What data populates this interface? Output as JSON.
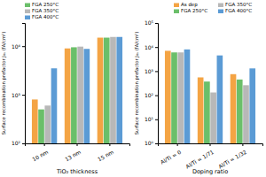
{
  "chart_data": [
    {
      "type": "bar",
      "log": "y",
      "grid": false,
      "legend": "top-left",
      "categories": [
        "10 nm",
        "13 nm",
        "15 nm"
      ],
      "series": [
        {
          "color": "#F4A444",
          "values": [
            800,
            9000,
            15000
          ]
        },
        {
          "name": "FGA 250°C",
          "color": "#6BBF6A",
          "values": [
            500,
            9500,
            15000
          ]
        },
        {
          "name": "FGA 350°C",
          "color": "#B8B8B8",
          "values": [
            600,
            9800,
            15500
          ]
        },
        {
          "name": "FGA 400°C",
          "color": "#5B9BD5",
          "values": [
            3500,
            8800,
            15500
          ]
        }
      ],
      "xlabel": "TiO₂ thickness",
      "ylabel": "Surface recombination prefactor J₀ₛ (fA/cm²)",
      "ylim": [
        100,
        30000
      ],
      "yticks": [
        {
          "value": 100,
          "label": "10²"
        },
        {
          "value": 1000,
          "label": "10³"
        },
        {
          "value": 10000,
          "label": "10⁴"
        }
      ]
    },
    {
      "type": "bar",
      "log": "y",
      "grid": false,
      "legend": "top-right",
      "categories": [
        "Al/Ti = 0",
        "Al/Ti = 1/71",
        "Al/Ti = 1/32"
      ],
      "series": [
        {
          "name": "As dep",
          "color": "#F4A444",
          "values": [
            7000,
            550,
            750
          ]
        },
        {
          "name": "FGA 250°C",
          "color": "#6BBF6A",
          "values": [
            6000,
            370,
            450
          ]
        },
        {
          "name": "FGA 350°C",
          "color": "#B8B8B8",
          "values": [
            6000,
            130,
            260
          ]
        },
        {
          "name": "FGA 400°C",
          "color": "#5B9BD5",
          "values": [
            8000,
            4500,
            1300
          ]
        }
      ],
      "xlabel": "Doping ratio",
      "ylabel": "Surface recombination prefactor J₀ₛ (fA/cm²)",
      "ylim": [
        1,
        100000
      ],
      "yticks": [
        {
          "value": 1,
          "label": "10⁰"
        },
        {
          "value": 10,
          "label": "10¹"
        },
        {
          "value": 100,
          "label": "10²"
        },
        {
          "value": 1000,
          "label": "10³"
        },
        {
          "value": 10000,
          "label": "10⁴"
        },
        {
          "value": 100000,
          "label": "10⁵"
        }
      ]
    }
  ]
}
